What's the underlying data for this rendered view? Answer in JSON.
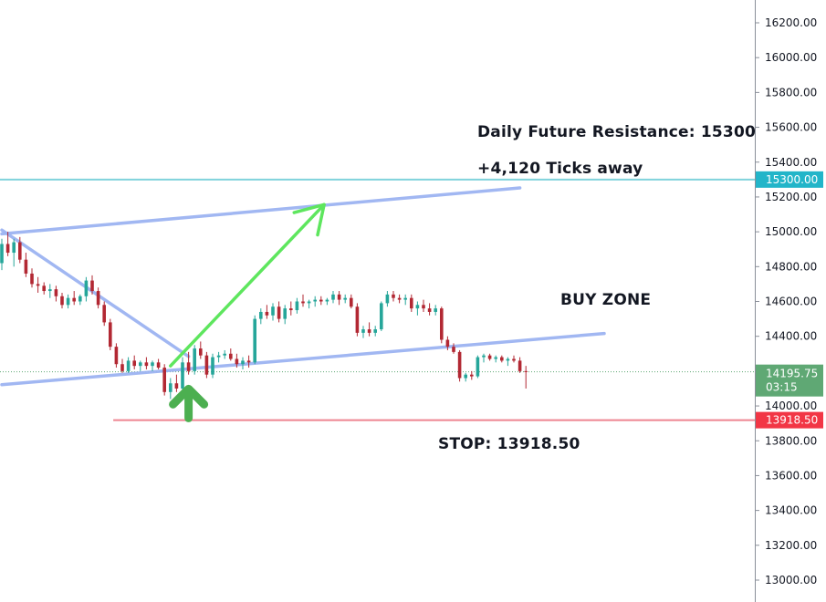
{
  "chart_data": {
    "type": "candlestick",
    "ylim": [
      12960,
      16300
    ],
    "y_ticks": [
      13000,
      13200,
      13400,
      13600,
      13800,
      14000,
      14200,
      14400,
      14600,
      14800,
      15000,
      15200,
      15400,
      15600,
      15800,
      16000,
      16200
    ],
    "y_tick_labels": [
      "13000.00",
      "13200.00",
      "13400.00",
      "13600.00",
      "13800.00",
      "14000.00",
      "14200.00",
      "14400.00",
      "14600.00",
      "14800.00",
      "15000.00",
      "15200.00",
      "15400.00",
      "15600.00",
      "15800.00",
      "16000.00",
      "16200.00"
    ],
    "colors": {
      "up": "#26a69a",
      "down": "#b22833",
      "trendline": "#9db4f2",
      "resistance": "#7fd3dc",
      "stop": "#ee8591",
      "arrow": "#5ee65e",
      "buy_arrow": "#4caf50",
      "last_badge": "#5fa874",
      "stop_badge": "#f23645",
      "res_badge": "#22b5c9"
    },
    "candles": [
      [
        14820,
        14960,
        14780,
        14930
      ],
      [
        14930,
        15000,
        14860,
        14880
      ],
      [
        14880,
        14960,
        14800,
        14940
      ],
      [
        14940,
        14970,
        14820,
        14840
      ],
      [
        14840,
        14880,
        14740,
        14760
      ],
      [
        14760,
        14790,
        14680,
        14700
      ],
      [
        14700,
        14740,
        14650,
        14690
      ],
      [
        14690,
        14710,
        14640,
        14660
      ],
      [
        14660,
        14700,
        14620,
        14670
      ],
      [
        14670,
        14690,
        14600,
        14630
      ],
      [
        14630,
        14650,
        14560,
        14580
      ],
      [
        14580,
        14640,
        14560,
        14620
      ],
      [
        14620,
        14660,
        14580,
        14600
      ],
      [
        14600,
        14640,
        14580,
        14630
      ],
      [
        14630,
        14740,
        14600,
        14720
      ],
      [
        14720,
        14750,
        14640,
        14660
      ],
      [
        14660,
        14680,
        14560,
        14580
      ],
      [
        14580,
        14600,
        14460,
        14480
      ],
      [
        14480,
        14500,
        14320,
        14340
      ],
      [
        14340,
        14360,
        14220,
        14240
      ],
      [
        14240,
        14270,
        14190,
        14200
      ],
      [
        14200,
        14280,
        14190,
        14260
      ],
      [
        14260,
        14290,
        14210,
        14230
      ],
      [
        14230,
        14260,
        14200,
        14250
      ],
      [
        14250,
        14280,
        14210,
        14230
      ],
      [
        14230,
        14260,
        14200,
        14250
      ],
      [
        14250,
        14270,
        14210,
        14220
      ],
      [
        14220,
        14240,
        14060,
        14080
      ],
      [
        14080,
        14160,
        14040,
        14130
      ],
      [
        14130,
        14180,
        14080,
        14100
      ],
      [
        14100,
        14280,
        14090,
        14250
      ],
      [
        14250,
        14310,
        14180,
        14200
      ],
      [
        14200,
        14350,
        14180,
        14330
      ],
      [
        14330,
        14370,
        14270,
        14290
      ],
      [
        14290,
        14310,
        14160,
        14180
      ],
      [
        14180,
        14300,
        14160,
        14280
      ],
      [
        14280,
        14310,
        14250,
        14290
      ],
      [
        14290,
        14320,
        14270,
        14300
      ],
      [
        14300,
        14330,
        14260,
        14270
      ],
      [
        14270,
        14300,
        14220,
        14240
      ],
      [
        14240,
        14280,
        14210,
        14260
      ],
      [
        14260,
        14290,
        14220,
        14250
      ],
      [
        14250,
        14520,
        14240,
        14500
      ],
      [
        14500,
        14560,
        14470,
        14540
      ],
      [
        14540,
        14580,
        14500,
        14520
      ],
      [
        14520,
        14590,
        14490,
        14570
      ],
      [
        14570,
        14600,
        14480,
        14500
      ],
      [
        14500,
        14580,
        14470,
        14560
      ],
      [
        14560,
        14600,
        14520,
        14550
      ],
      [
        14550,
        14620,
        14530,
        14600
      ],
      [
        14600,
        14640,
        14570,
        14590
      ],
      [
        14590,
        14610,
        14560,
        14600
      ],
      [
        14600,
        14630,
        14570,
        14610
      ],
      [
        14610,
        14630,
        14580,
        14600
      ],
      [
        14600,
        14620,
        14580,
        14610
      ],
      [
        14610,
        14660,
        14590,
        14640
      ],
      [
        14640,
        14660,
        14580,
        14610
      ],
      [
        14610,
        14640,
        14590,
        14620
      ],
      [
        14620,
        14640,
        14560,
        14570
      ],
      [
        14570,
        14590,
        14400,
        14420
      ],
      [
        14420,
        14460,
        14390,
        14440
      ],
      [
        14440,
        14480,
        14400,
        14420
      ],
      [
        14420,
        14460,
        14400,
        14440
      ],
      [
        14440,
        14600,
        14430,
        14590
      ],
      [
        14590,
        14660,
        14570,
        14640
      ],
      [
        14640,
        14660,
        14600,
        14620
      ],
      [
        14620,
        14640,
        14590,
        14610
      ],
      [
        14610,
        14640,
        14580,
        14620
      ],
      [
        14620,
        14640,
        14540,
        14560
      ],
      [
        14560,
        14600,
        14520,
        14580
      ],
      [
        14580,
        14610,
        14540,
        14560
      ],
      [
        14560,
        14590,
        14520,
        14540
      ],
      [
        14540,
        14580,
        14520,
        14560
      ],
      [
        14560,
        14570,
        14360,
        14380
      ],
      [
        14380,
        14400,
        14320,
        14340
      ],
      [
        14340,
        14360,
        14300,
        14310
      ],
      [
        14310,
        14320,
        14140,
        14160
      ],
      [
        14160,
        14190,
        14140,
        14180
      ],
      [
        14180,
        14200,
        14150,
        14170
      ],
      [
        14170,
        14290,
        14160,
        14280
      ],
      [
        14280,
        14300,
        14250,
        14290
      ],
      [
        14290,
        14300,
        14260,
        14270
      ],
      [
        14270,
        14290,
        14250,
        14280
      ],
      [
        14280,
        14290,
        14250,
        14260
      ],
      [
        14260,
        14280,
        14230,
        14270
      ],
      [
        14270,
        14290,
        14250,
        14260
      ],
      [
        14260,
        14280,
        14190,
        14200
      ],
      [
        14200,
        14230,
        14100,
        14196
      ]
    ],
    "trendlines": [
      {
        "x": [
          0,
          86
        ],
        "y": [
          14988,
          15252
        ]
      },
      {
        "x": [
          0,
          31
        ],
        "y": [
          15010,
          14284
        ]
      },
      {
        "x": [
          0,
          100
        ],
        "y": [
          14122,
          14416
        ]
      }
    ],
    "arrow": {
      "x": [
        28,
        53.5
      ],
      "y": [
        14230,
        15156
      ]
    },
    "buy_arrow": {
      "x": 31,
      "y": [
        13930,
        14098
      ]
    },
    "resistance": {
      "y": 15300,
      "label": "Daily Future Resistance: 15300",
      "sub_label": "+4,120 Ticks away",
      "badge": "15300.00"
    },
    "stop": {
      "y": 13918.5,
      "x_start": 18.5,
      "label": "STOP: 13918.50",
      "badge": "13918.50"
    },
    "last_price": {
      "y": 14195.75,
      "badge": "14195.75",
      "countdown": "03:15"
    },
    "buy_zone": {
      "label": "BUY ZONE",
      "x": 76,
      "y": 14622
    }
  }
}
